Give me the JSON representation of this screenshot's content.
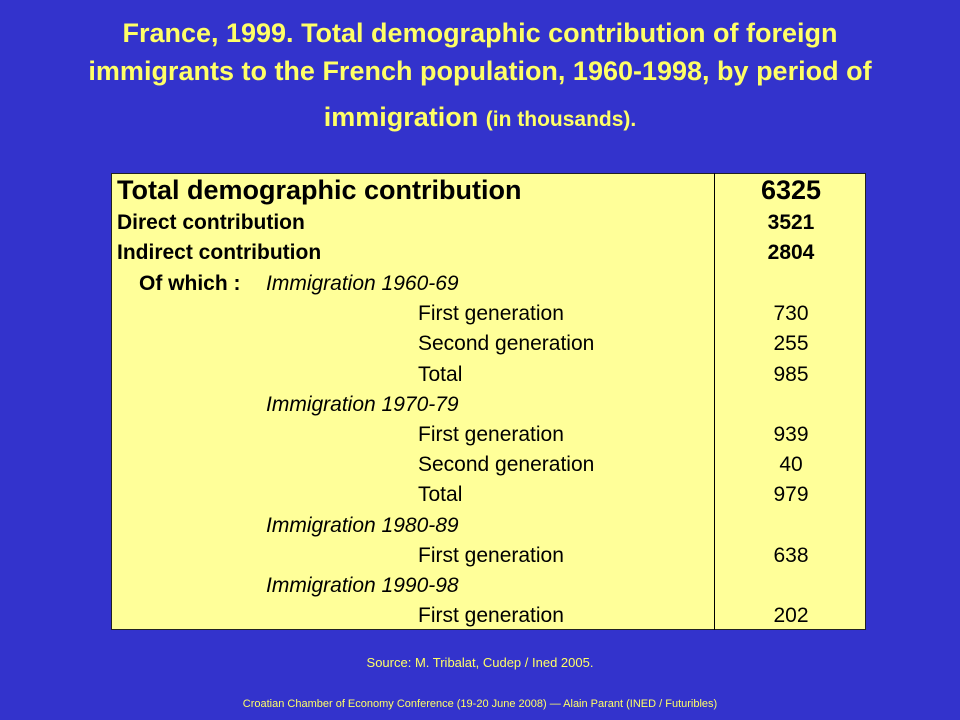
{
  "title": {
    "line1": "France, 1999. Total demographic contribution of foreign",
    "line2": "immigrants to the French population, 1960-1998, by period of",
    "line3_main": "immigration",
    "line3_small": "(in thousands)."
  },
  "table": {
    "total": {
      "label": "Total demographic contribution",
      "value": "6325"
    },
    "direct": {
      "label": "Direct contribution",
      "value": "3521"
    },
    "indirect": {
      "label": "Indirect contribution",
      "value": "2804"
    },
    "of_which": "Of which :",
    "periods": [
      {
        "name": "Immigration  1960-69",
        "rows": [
          {
            "label": "First generation",
            "value": "730"
          },
          {
            "label": "Second generation",
            "value": "255"
          },
          {
            "label": "Total",
            "value": "985"
          }
        ]
      },
      {
        "name": "Immigration 1970-79",
        "rows": [
          {
            "label": "First generation",
            "value": "939"
          },
          {
            "label": "Second generation",
            "value": "40"
          },
          {
            "label": "Total",
            "value": "979"
          }
        ]
      },
      {
        "name": "Immigration 1980-89",
        "rows": [
          {
            "label": "First generation",
            "value": "638"
          }
        ]
      },
      {
        "name": "Immigration 1990-98",
        "rows": [
          {
            "label": "First generation",
            "value": "202"
          }
        ]
      }
    ]
  },
  "source": "Source: M. Tribalat, Cudep / Ined 2005.",
  "footer": "Croatian Chamber of Economy Conference (19-20 June 2008) — Alain Parant (INED / Futuribles)"
}
